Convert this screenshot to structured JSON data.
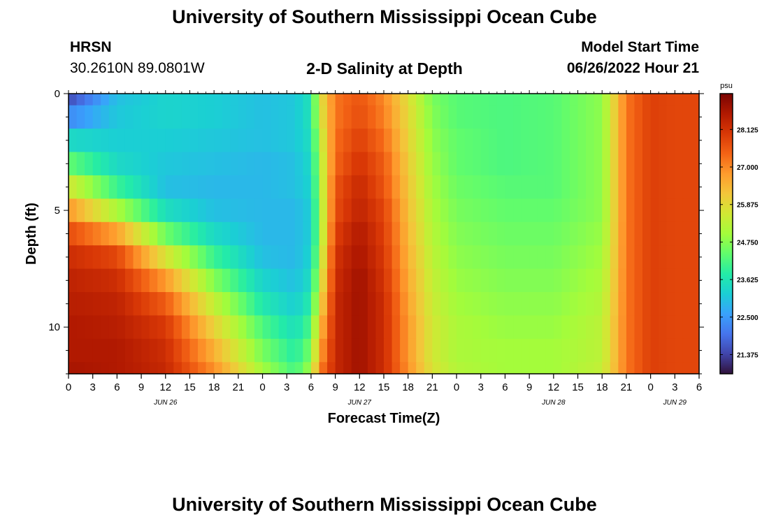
{
  "header": {
    "title": "University of Southern Mississippi Ocean Cube",
    "station": "HRSN",
    "coords": "30.2610N  89.0801W",
    "subtitle": "2-D Salinity at Depth",
    "model_label": "Model Start Time",
    "model_time": "06/26/2022 Hour 21"
  },
  "footer": {
    "title": "University of Southern Mississippi Ocean Cube"
  },
  "chart_data": {
    "type": "heatmap",
    "title": "2-D Salinity at Depth",
    "xlabel": "Forecast Time(Z)",
    "ylabel": "Depth (ft)",
    "x_range_hours": [
      0,
      78
    ],
    "y_range_ft": [
      0,
      12
    ],
    "x_ticks": [
      "0",
      "3",
      "6",
      "9",
      "12",
      "15",
      "18",
      "21",
      "0",
      "3",
      "6",
      "9",
      "12",
      "15",
      "18",
      "21",
      "0",
      "3",
      "6",
      "9",
      "12",
      "15",
      "18",
      "21",
      "0",
      "3",
      "6"
    ],
    "y_ticks": [
      "0",
      "5",
      "10"
    ],
    "date_labels": [
      {
        "label": "JUN 26",
        "hour": 12
      },
      {
        "label": "JUN 27",
        "hour": 36
      },
      {
        "label": "JUN 28",
        "hour": 60
      },
      {
        "label": "JUN 29",
        "hour": 75
      }
    ],
    "colorbar": {
      "unit": "psu",
      "range": [
        20.8,
        29.2
      ],
      "labels": [
        "28.125",
        "27.000",
        "25.875",
        "24.750",
        "23.625",
        "22.500",
        "21.375"
      ],
      "colormap": [
        "#30123b",
        "#4145ab",
        "#4675ed",
        "#39a2fc",
        "#1bcfd4",
        "#24eca6",
        "#61fc6c",
        "#a4fc3b",
        "#d1e834",
        "#f3c63a",
        "#fe9b2d",
        "#f36315",
        "#d93806",
        "#b11901",
        "#7a0402"
      ]
    },
    "depth_levels_ft": [
      0,
      1,
      2,
      3,
      4,
      5,
      6,
      7,
      8,
      9,
      10,
      11,
      12
    ],
    "keyframes_hours": [
      0,
      6,
      12,
      18,
      24,
      28,
      30,
      31,
      33,
      36,
      39,
      42,
      45,
      48,
      54,
      60,
      66,
      69,
      72,
      75,
      78
    ],
    "salinity_psu": [
      [
        21.5,
        23.0,
        23.3,
        23.2,
        23.0,
        23.1,
        23.6,
        25.6,
        27.2,
        27.6,
        27.0,
        25.8,
        24.6,
        24.3,
        24.2,
        24.3,
        24.8,
        27.2,
        27.9,
        27.8,
        27.8
      ],
      [
        22.3,
        23.1,
        23.3,
        23.2,
        23.0,
        23.1,
        23.6,
        25.5,
        27.2,
        27.7,
        27.1,
        25.9,
        24.7,
        24.3,
        24.2,
        24.3,
        24.8,
        27.2,
        27.9,
        27.8,
        27.8
      ],
      [
        23.4,
        23.2,
        23.2,
        23.1,
        23.0,
        23.1,
        23.5,
        25.2,
        27.3,
        27.9,
        27.3,
        26.0,
        24.8,
        24.4,
        24.2,
        24.3,
        24.8,
        27.2,
        27.9,
        27.8,
        27.8
      ],
      [
        24.4,
        23.4,
        23.1,
        23.0,
        22.9,
        23.0,
        23.4,
        25.0,
        27.4,
        28.1,
        27.5,
        26.1,
        24.9,
        24.4,
        24.2,
        24.3,
        24.8,
        27.2,
        27.9,
        27.8,
        27.8
      ],
      [
        25.6,
        24.0,
        23.0,
        22.9,
        22.9,
        23.0,
        23.3,
        24.9,
        27.6,
        28.3,
        27.6,
        26.2,
        25.0,
        24.5,
        24.3,
        24.3,
        24.8,
        27.2,
        27.9,
        27.8,
        27.8
      ],
      [
        26.8,
        25.1,
        23.5,
        23.0,
        22.9,
        22.9,
        23.2,
        24.8,
        27.7,
        28.4,
        27.8,
        26.3,
        25.1,
        24.6,
        24.4,
        24.4,
        24.8,
        27.2,
        27.9,
        27.8,
        27.8
      ],
      [
        27.7,
        26.7,
        24.5,
        23.4,
        22.9,
        22.9,
        23.2,
        24.8,
        27.9,
        28.6,
        27.9,
        26.4,
        25.2,
        24.7,
        24.5,
        24.5,
        24.9,
        27.2,
        27.9,
        27.8,
        27.8
      ],
      [
        28.2,
        27.8,
        25.7,
        24.0,
        23.0,
        22.9,
        23.3,
        25.0,
        28.1,
        28.7,
        28.0,
        26.5,
        25.3,
        24.8,
        24.6,
        24.6,
        25.0,
        27.2,
        27.9,
        27.8,
        27.8
      ],
      [
        28.4,
        28.2,
        26.8,
        24.7,
        23.3,
        23.0,
        23.5,
        25.3,
        28.2,
        28.8,
        28.1,
        26.6,
        25.4,
        24.9,
        24.7,
        24.7,
        25.1,
        27.2,
        27.9,
        27.8,
        27.8
      ],
      [
        28.5,
        28.4,
        27.5,
        25.4,
        23.7,
        23.2,
        23.8,
        25.7,
        28.3,
        28.8,
        28.2,
        26.7,
        25.5,
        25.0,
        24.8,
        24.8,
        25.2,
        27.2,
        27.9,
        27.8,
        27.8
      ],
      [
        28.6,
        28.5,
        28.0,
        26.0,
        24.2,
        23.5,
        24.2,
        26.2,
        28.3,
        28.8,
        28.2,
        26.8,
        25.6,
        25.1,
        24.9,
        24.9,
        25.3,
        27.2,
        27.9,
        27.8,
        27.8
      ],
      [
        28.6,
        28.6,
        28.2,
        26.5,
        24.6,
        23.8,
        24.6,
        26.6,
        28.3,
        28.8,
        28.2,
        26.8,
        25.6,
        25.1,
        25.0,
        25.0,
        25.3,
        27.2,
        27.9,
        27.8,
        27.8
      ],
      [
        28.7,
        28.6,
        28.3,
        26.9,
        25.0,
        24.1,
        25.0,
        27.0,
        28.3,
        28.8,
        28.2,
        26.9,
        25.7,
        25.2,
        25.0,
        25.0,
        25.4,
        27.2,
        27.9,
        27.8,
        27.8
      ]
    ]
  }
}
